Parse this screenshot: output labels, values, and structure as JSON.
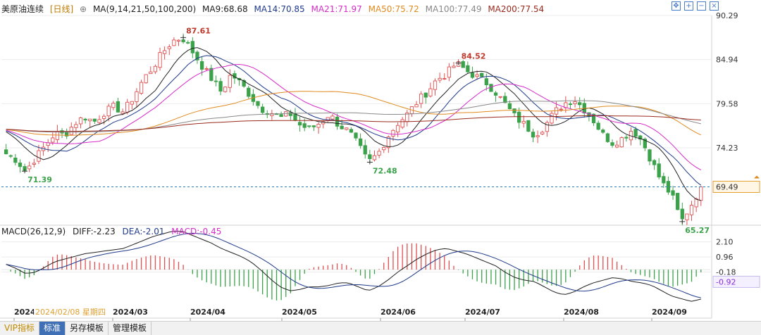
{
  "header": {
    "symbol": "美原油连续",
    "period": "[日线]",
    "ma_label": "MA(9,14,21,50,100,200)",
    "ma_values": [
      {
        "text": "MA9:68.68",
        "color": "#222222"
      },
      {
        "text": "MA14:70.85",
        "color": "#1f3a8a"
      },
      {
        "text": "MA21:71.97",
        "color": "#d62cc8"
      },
      {
        "text": "MA50:75.72",
        "color": "#e08a1e"
      },
      {
        "text": "MA100:77.49",
        "color": "#888888"
      },
      {
        "text": "MA200:77.54",
        "color": "#9a2a1e"
      }
    ]
  },
  "toolbar": {
    "icons": [
      "expand-icon",
      "zoom-in-icon",
      "zoom-out-icon",
      "close-icon"
    ]
  },
  "macd_header": {
    "label": "MACD(26,12,9)",
    "diff": "DIFF:-2.23",
    "dea": "DEA:-2.01",
    "macd": "MACD:-0.45"
  },
  "price_axis": {
    "ticks": [
      "90.29",
      "84.94",
      "79.58",
      "74.23"
    ],
    "current": "69.49"
  },
  "macd_axis": {
    "ticks": [
      "2.10",
      "0.96",
      "-0.18"
    ],
    "current": "-0.92"
  },
  "x_axis": {
    "labels": [
      "2024",
      "2024/03",
      "2024/04",
      "2024/05",
      "2024/06",
      "2024/07",
      "2024/08",
      "2024/09"
    ],
    "crosshair_date": "2024/02/08 星期四"
  },
  "annotations": [
    {
      "text": "87.61",
      "kind": "high"
    },
    {
      "text": "71.39",
      "kind": "low"
    },
    {
      "text": "72.48",
      "kind": "low"
    },
    {
      "text": "84.52",
      "kind": "high"
    },
    {
      "text": "65.27",
      "kind": "low"
    }
  ],
  "bottom_tabs": [
    "VIP指标",
    "标准",
    "另存模板",
    "管理模板"
  ],
  "colors": {
    "up": "#e05050",
    "down": "#3ba24a",
    "ma9": "#222222",
    "ma14": "#1f3a8a",
    "ma21": "#d62cc8",
    "ma50": "#e08a1e",
    "ma100": "#888888",
    "ma200": "#9a2a1e"
  },
  "chart_data": {
    "type": "candlestick",
    "price_range": [
      65.0,
      90.29
    ],
    "grid": true,
    "anchor_prices": [
      73.5,
      72.8,
      71.4,
      73.0,
      74.5,
      76.0,
      75.8,
      77.2,
      78.0,
      77.4,
      78.5,
      79.2,
      78.6,
      80.4,
      82.5,
      84.0,
      85.8,
      87.2,
      87.61,
      86.0,
      84.2,
      82.6,
      81.0,
      83.2,
      82.0,
      80.5,
      79.0,
      78.6,
      77.8,
      78.4,
      77.0,
      76.5,
      77.2,
      78.3,
      77.0,
      76.2,
      74.5,
      72.48,
      73.5,
      75.6,
      77.2,
      78.3,
      79.8,
      81.0,
      82.5,
      83.2,
      84.52,
      83.6,
      82.9,
      82.2,
      81.0,
      79.5,
      78.0,
      77.0,
      75.8,
      76.8,
      78.5,
      79.6,
      80.2,
      79.0,
      77.6,
      75.8,
      74.8,
      75.4,
      76.5,
      75.0,
      72.5,
      70.0,
      68.5,
      65.27,
      67.3,
      69.49
    ],
    "anchor_macd": [
      0.4,
      0.1,
      -0.3,
      -0.2,
      0.2,
      0.6,
      0.8,
      1.0,
      1.2,
      1.3,
      1.4,
      1.5,
      1.6,
      1.9,
      2.2,
      2.5,
      2.7,
      2.9,
      2.9,
      2.6,
      2.3,
      2.0,
      1.6,
      1.3,
      1.0,
      0.6,
      0.0,
      -0.7,
      -1.3,
      -1.6,
      -1.5,
      -1.3,
      -1.3,
      -1.2,
      -1.0,
      -1.0,
      -1.3,
      -1.6,
      -1.3,
      -0.8,
      -0.2,
      0.3,
      0.8,
      1.2,
      1.5,
      1.6,
      1.4,
      1.2,
      0.9,
      0.6,
      0.3,
      -0.2,
      -0.6,
      -0.8,
      -0.9,
      -1.3,
      -1.7,
      -1.9,
      -1.7,
      -1.3,
      -1.0,
      -0.8,
      -0.6,
      -0.7,
      -0.9,
      -1.0,
      -1.2,
      -1.6,
      -2.0,
      -2.2,
      -2.4,
      -2.23
    ]
  }
}
